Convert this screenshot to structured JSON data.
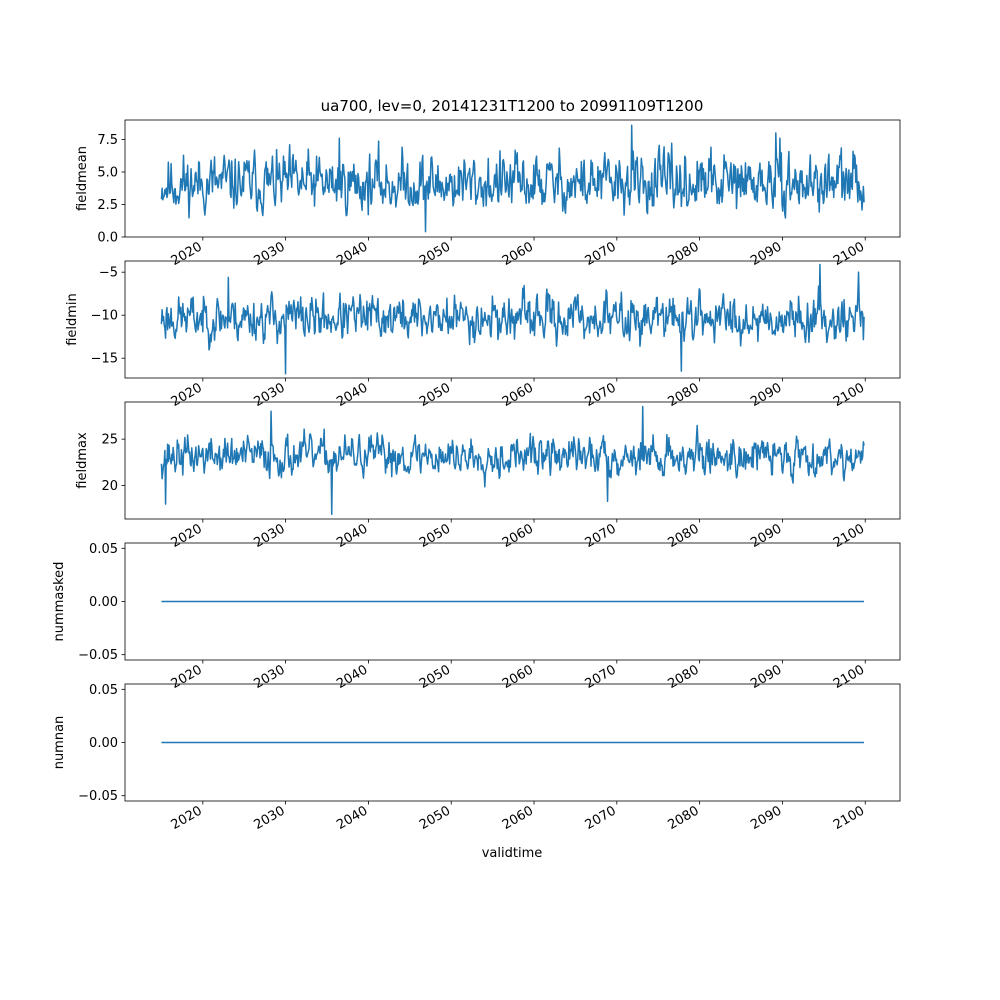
{
  "title": "ua700, lev=0, 20141231T1200 to 20991109T1200",
  "line_color": "#1f77b4",
  "chart_data": {
    "type": "line",
    "title": "ua700, lev=0, 20141231T1200 to 20991109T1200",
    "xlabel": "validtime",
    "x_range": [
      "2014-12-31T12:00",
      "2099-11-09T12:00"
    ],
    "xlim": [
      2010.6,
      2104.2
    ],
    "xticks": [
      2020,
      2030,
      2040,
      2050,
      2060,
      2070,
      2080,
      2090,
      2100
    ],
    "xtick_labels": [
      "2020",
      "2030",
      "2040",
      "2050",
      "2060",
      "2070",
      "2080",
      "2090",
      "2100"
    ],
    "grid": false,
    "subplots": [
      {
        "ylabel": "fieldmean",
        "ylim": [
          0.0,
          9.0
        ],
        "yticks": [
          0.0,
          2.5,
          5.0,
          7.5
        ],
        "ytick_labels": [
          "0.0",
          "2.5",
          "5.0",
          "7.5"
        ],
        "base": 4.0,
        "amp": 1.5,
        "min": 0.4,
        "max": 8.6,
        "seed": 11,
        "extremes": [
          [
            2071.8,
            8.6
          ],
          [
            2046.9,
            0.4
          ],
          [
            2036.5,
            7.6
          ],
          [
            2089.2,
            8.0
          ]
        ]
      },
      {
        "ylabel": "fieldmin",
        "ylim": [
          -17.3,
          -3.7
        ],
        "yticks": [
          -15,
          -10,
          -5
        ],
        "ytick_labels": [
          "−15",
          "−10",
          "−5"
        ],
        "base": -10.3,
        "amp": 2.0,
        "min": -16.8,
        "max": -4.1,
        "seed": 23,
        "extremes": [
          [
            2030.0,
            -16.8
          ],
          [
            2077.8,
            -16.5
          ],
          [
            2094.5,
            -4.1
          ],
          [
            2023.1,
            -5.6
          ],
          [
            2099.2,
            -5.0
          ]
        ]
      },
      {
        "ylabel": "fieldmax",
        "ylim": [
          16.4,
          29.0
        ],
        "yticks": [
          20,
          25
        ],
        "ytick_labels": [
          "20",
          "25"
        ],
        "base": 23.2,
        "amp": 1.6,
        "min": 16.9,
        "max": 28.5,
        "seed": 37,
        "extremes": [
          [
            2035.6,
            16.9
          ],
          [
            2073.1,
            28.5
          ],
          [
            2028.2,
            28.0
          ],
          [
            2015.5,
            18.0
          ],
          [
            2068.9,
            18.3
          ]
        ]
      },
      {
        "ylabel": "nummasked",
        "ylim": [
          -0.055,
          0.055
        ],
        "yticks": [
          -0.05,
          0.0,
          0.05
        ],
        "ytick_labels": [
          "−0.05",
          "0.00",
          "0.05"
        ],
        "constant": 0.0
      },
      {
        "ylabel": "numnan",
        "ylim": [
          -0.055,
          0.055
        ],
        "yticks": [
          -0.05,
          0.0,
          0.05
        ],
        "ytick_labels": [
          "−0.05",
          "0.00",
          "0.05"
        ],
        "constant": 0.0
      }
    ]
  }
}
